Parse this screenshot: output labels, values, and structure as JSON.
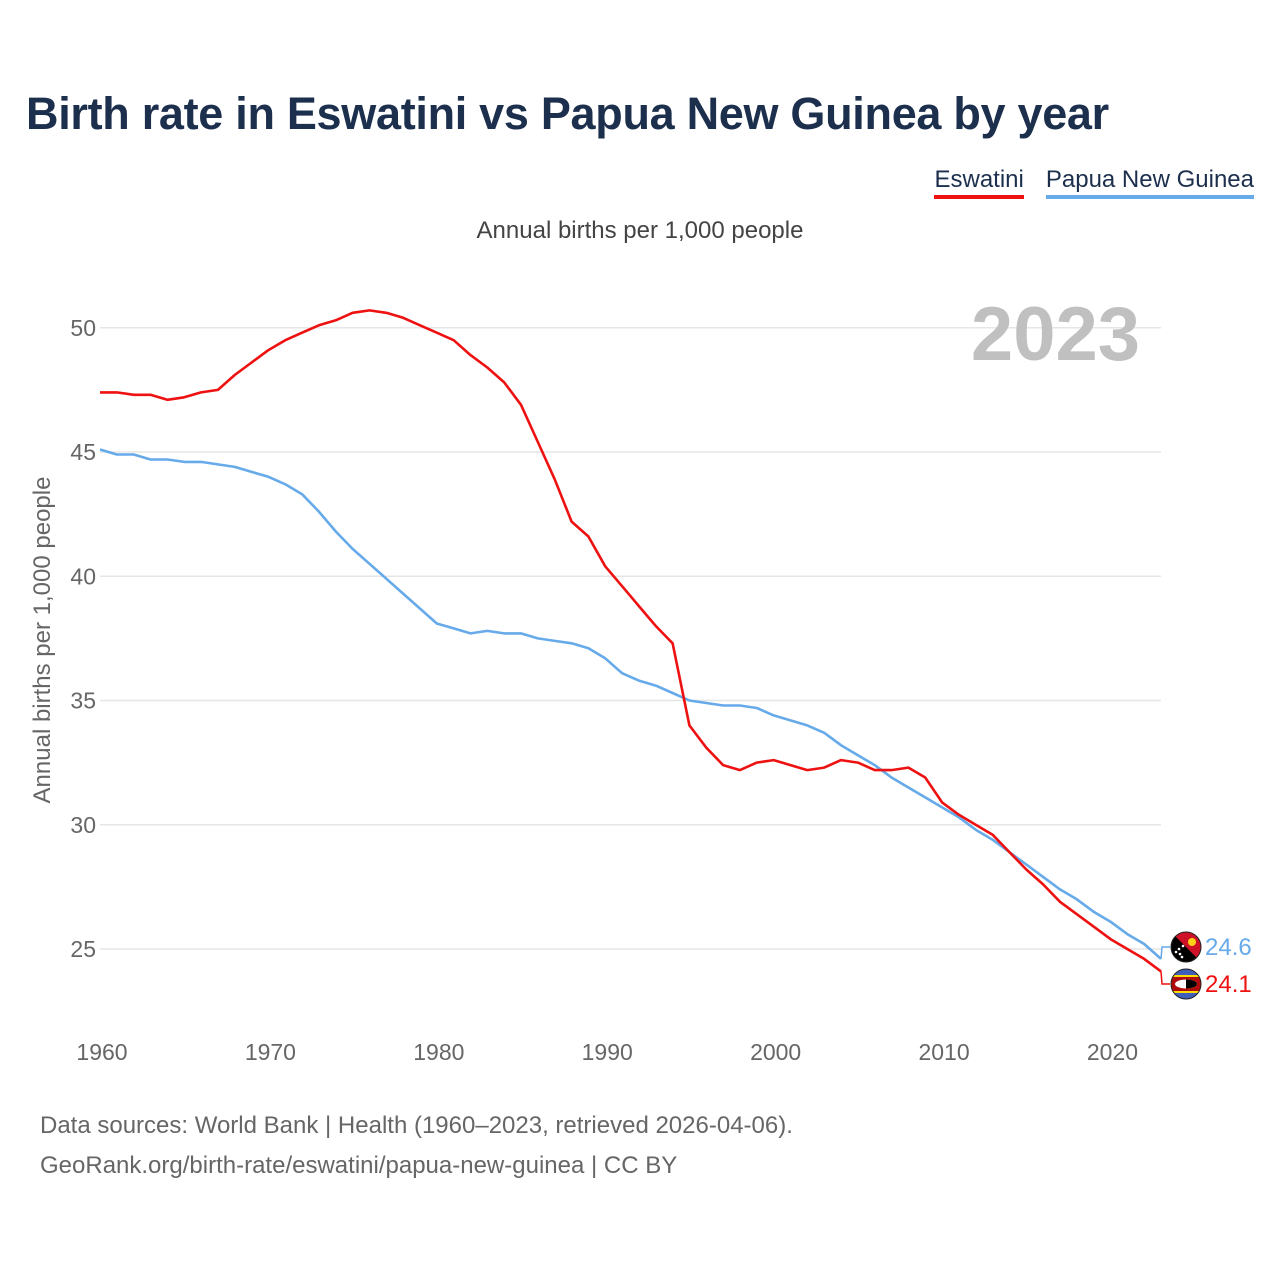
{
  "title": "Birth rate in Eswatini vs Papua New Guinea by year",
  "subtitle": "Annual births per 1,000 people",
  "source_line1": "Data sources: World Bank | Health (1960–2023, retrieved 2026-04-06).",
  "source_line2": "GeoRank.org/birth-rate/eswatini/papua-new-guinea | CC BY",
  "year_label": "2023",
  "colors": {
    "eswatini": "#ee1111",
    "png": "#66aaea",
    "grid": "#e6e6e6",
    "axis_text": "#666666",
    "year": "#c0c0c0"
  },
  "chart_data": {
    "type": "line",
    "title": "Birth rate in Eswatini vs Papua New Guinea by year",
    "ylabel": "Annual births per 1,000 people",
    "xlabel": "",
    "xlim": [
      1960,
      2023
    ],
    "ylim": [
      22.5,
      52.6
    ],
    "x_ticks": [
      1960,
      1970,
      1980,
      1990,
      2000,
      2010,
      2020
    ],
    "y_ticks": [
      25,
      30,
      35,
      40,
      45,
      50
    ],
    "legend_position": "top-right",
    "x": [
      1960,
      1961,
      1962,
      1963,
      1964,
      1965,
      1966,
      1967,
      1968,
      1969,
      1970,
      1971,
      1972,
      1973,
      1974,
      1975,
      1976,
      1977,
      1978,
      1979,
      1980,
      1981,
      1982,
      1983,
      1984,
      1985,
      1986,
      1987,
      1988,
      1989,
      1990,
      1991,
      1992,
      1993,
      1994,
      1995,
      1996,
      1997,
      1998,
      1999,
      2000,
      2001,
      2002,
      2003,
      2004,
      2005,
      2006,
      2007,
      2008,
      2009,
      2010,
      2011,
      2012,
      2013,
      2014,
      2015,
      2016,
      2017,
      2018,
      2019,
      2020,
      2021,
      2022,
      2023
    ],
    "series": [
      {
        "name": "Eswatini",
        "end_label": "24.1",
        "values": [
          47.4,
          47.4,
          47.3,
          47.3,
          47.1,
          47.2,
          47.4,
          47.5,
          48.1,
          48.6,
          49.1,
          49.5,
          49.8,
          50.1,
          50.3,
          50.6,
          50.7,
          50.6,
          50.4,
          50.1,
          49.8,
          49.5,
          48.9,
          48.4,
          47.8,
          46.9,
          45.4,
          43.9,
          42.2,
          41.6,
          40.4,
          39.6,
          38.8,
          38.0,
          37.3,
          34.0,
          33.1,
          32.4,
          32.2,
          32.5,
          32.6,
          32.4,
          32.2,
          32.3,
          32.6,
          32.5,
          32.2,
          32.2,
          32.3,
          31.9,
          30.9,
          30.4,
          30.0,
          29.6,
          28.9,
          28.2,
          27.6,
          26.9,
          26.4,
          25.9,
          25.4,
          25.0,
          24.6,
          24.1
        ]
      },
      {
        "name": "Papua New Guinea",
        "end_label": "24.6",
        "values": [
          45.1,
          44.9,
          44.9,
          44.7,
          44.7,
          44.6,
          44.6,
          44.5,
          44.4,
          44.2,
          44.0,
          43.7,
          43.3,
          42.6,
          41.8,
          41.1,
          40.5,
          39.9,
          39.3,
          38.7,
          38.1,
          37.9,
          37.7,
          37.8,
          37.7,
          37.7,
          37.5,
          37.4,
          37.3,
          37.1,
          36.7,
          36.1,
          35.8,
          35.6,
          35.3,
          35.0,
          34.9,
          34.8,
          34.8,
          34.7,
          34.4,
          34.2,
          34.0,
          33.7,
          33.2,
          32.8,
          32.4,
          31.9,
          31.5,
          31.1,
          30.7,
          30.3,
          29.8,
          29.4,
          28.9,
          28.4,
          27.9,
          27.4,
          27.0,
          26.5,
          26.1,
          25.6,
          25.2,
          24.6
        ]
      }
    ]
  }
}
